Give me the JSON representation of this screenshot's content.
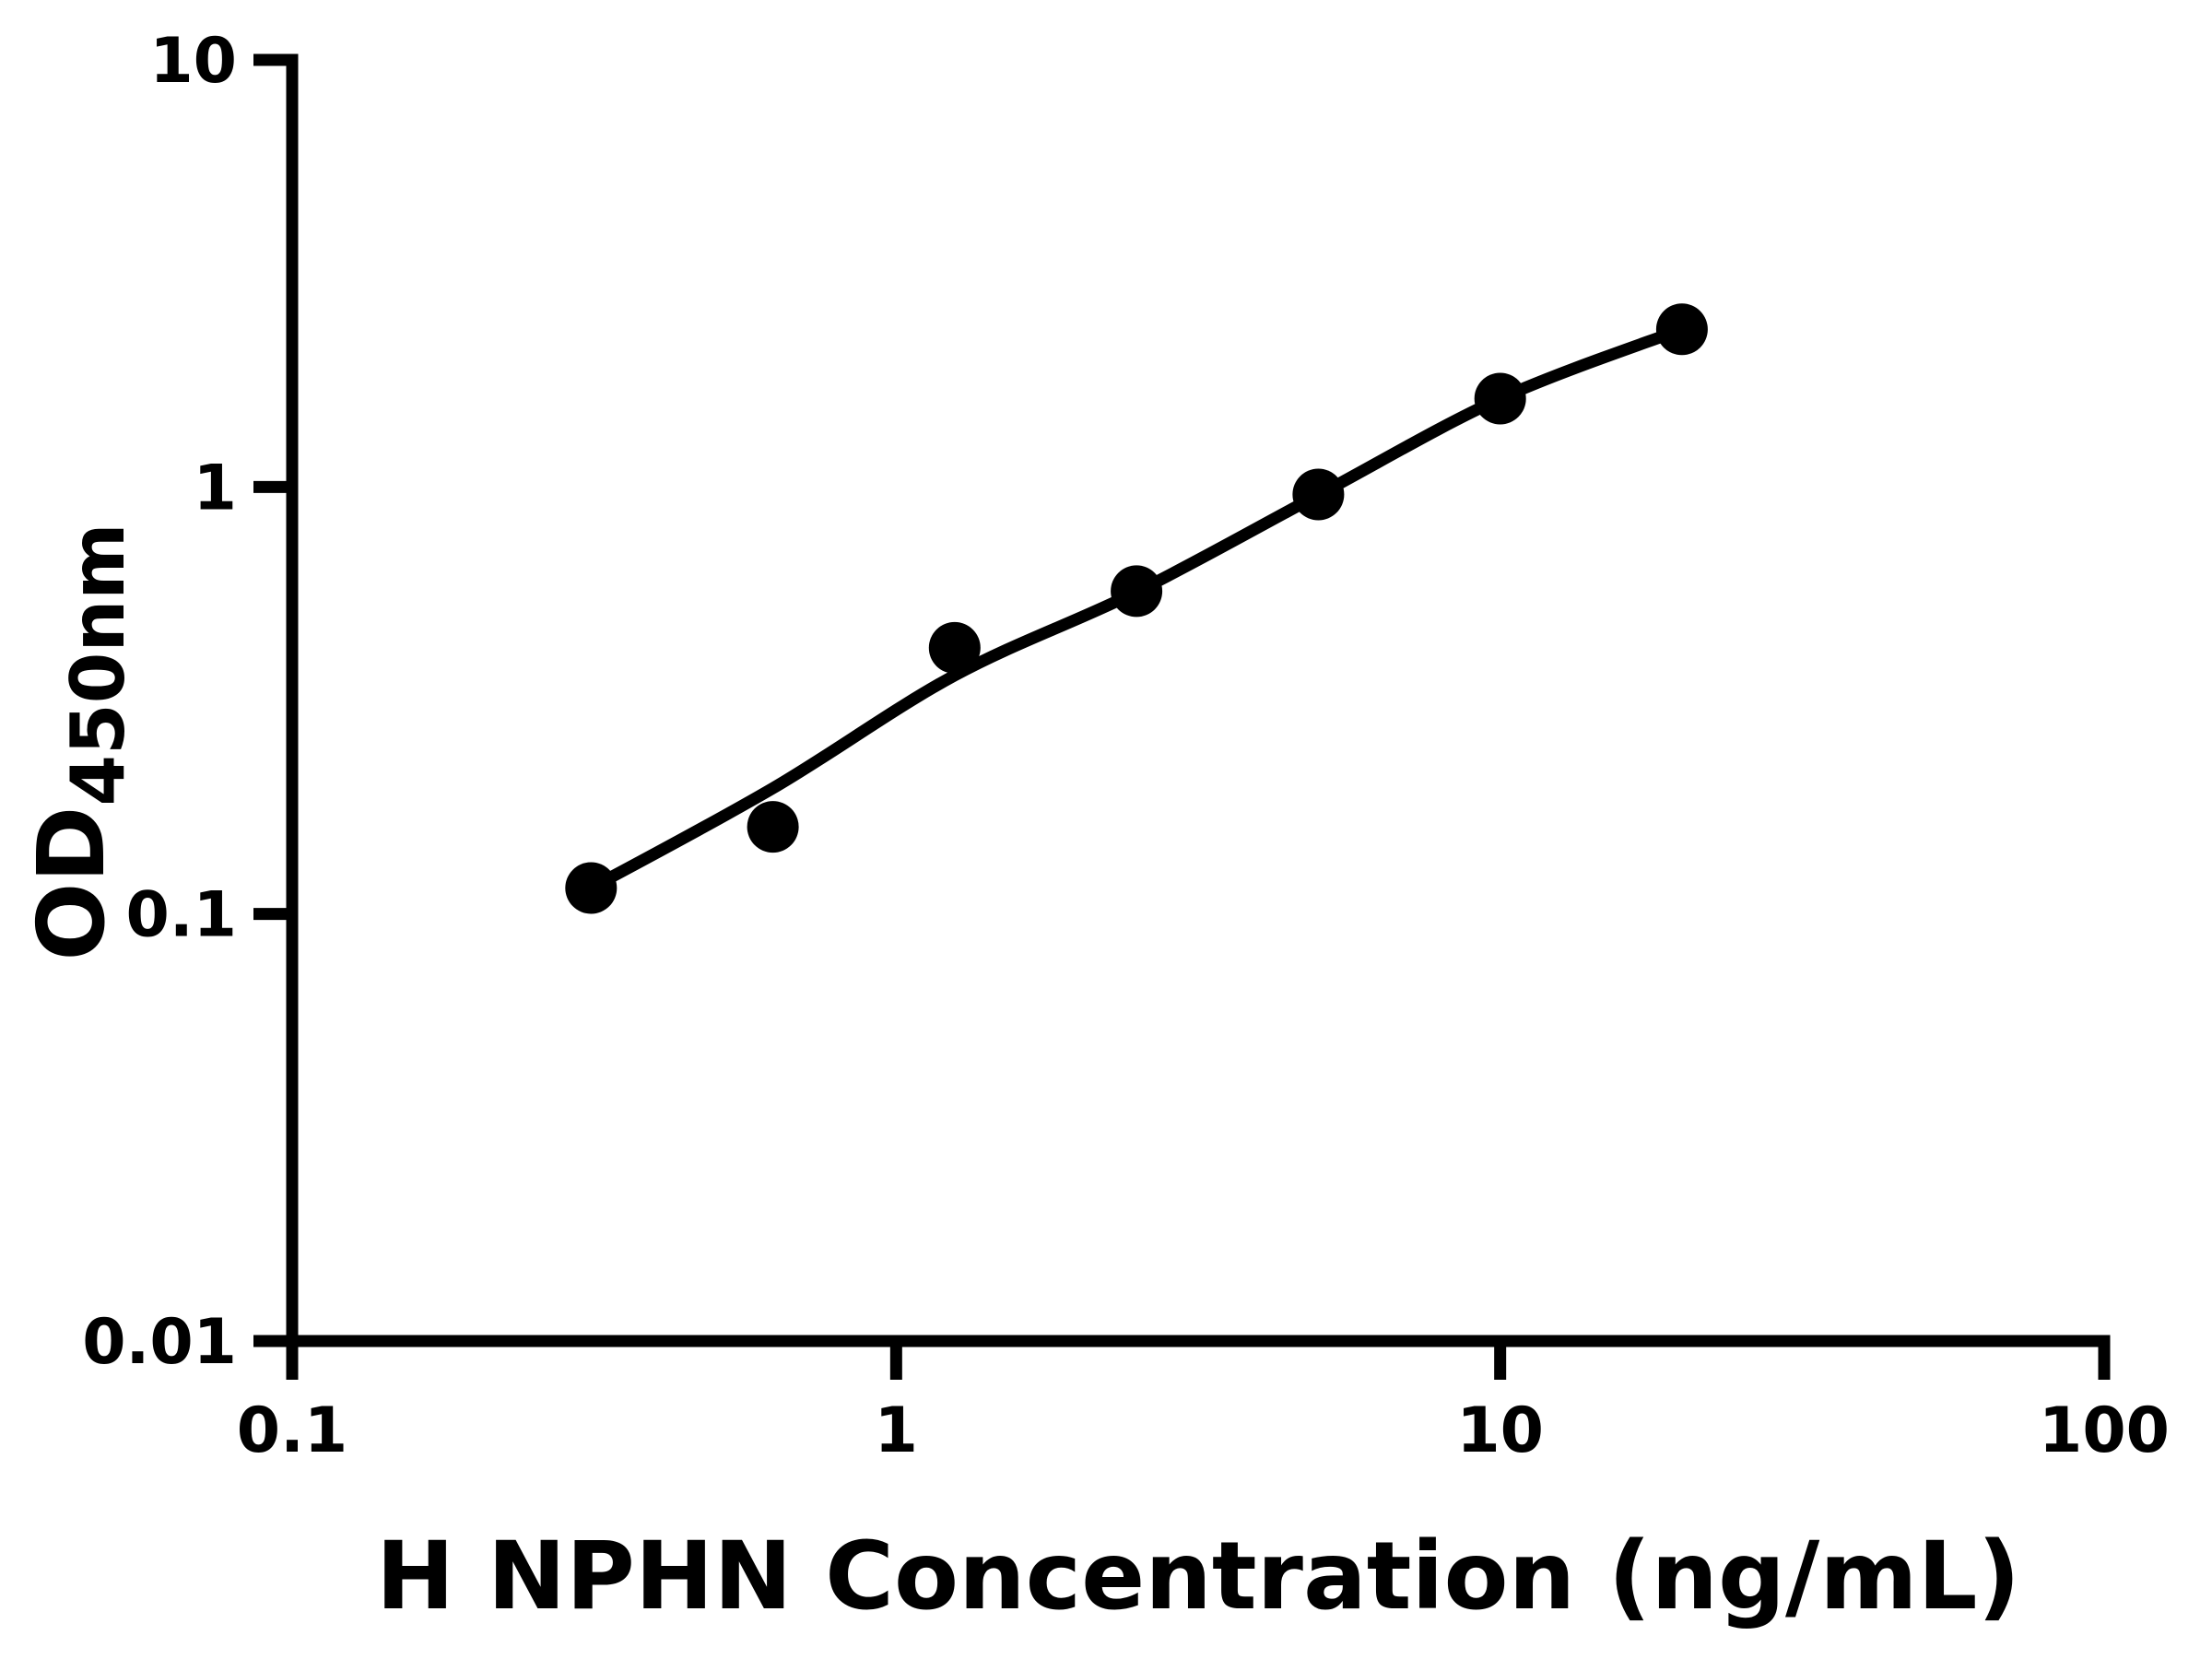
{
  "figure": {
    "background": "#ffffff",
    "foreground": "#000000"
  },
  "chart_data": {
    "type": "scatter",
    "title": "",
    "xlabel": "H NPHN Concentration (ng/mL)",
    "ylabel_main": "OD",
    "ylabel_sub": "450nm",
    "xscale": "log",
    "yscale": "log",
    "xlim": [
      0.1,
      100
    ],
    "ylim": [
      0.01,
      10
    ],
    "x_tick_labels": [
      "0.1",
      "1",
      "10",
      "100"
    ],
    "y_tick_labels": [
      "0.01",
      "0.1",
      "1",
      "10"
    ],
    "grid": false,
    "legend": "none",
    "series": [
      {
        "marker": "circle",
        "color": "#000000",
        "x": [
          0.3125,
          0.625,
          1.25,
          2.5,
          5,
          10,
          20
        ],
        "y": [
          0.115,
          0.16,
          0.42,
          0.57,
          0.96,
          1.61,
          2.34
        ]
      }
    ],
    "fit_curve": {
      "color": "#000000",
      "points": [
        [
          0.3125,
          0.115
        ],
        [
          0.625,
          0.197
        ],
        [
          1.25,
          0.362
        ],
        [
          2.5,
          0.568
        ],
        [
          5,
          0.958
        ],
        [
          10,
          1.61
        ],
        [
          20,
          2.34
        ]
      ]
    }
  }
}
